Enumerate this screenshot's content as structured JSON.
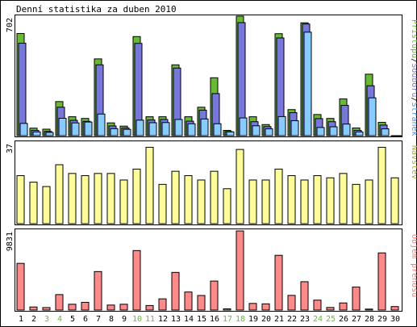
{
  "title": "Denní statistika za duben 2010",
  "colors": {
    "hits": "#66bb33",
    "files": "#7777dd",
    "pages": "#88ccff",
    "visits": "#ffff99",
    "traffic": "#ff8888",
    "weekend": "#66bb33",
    "text": "#000000"
  },
  "chart_data": [
    {
      "type": "bar",
      "panel": "hits",
      "ymax_label": "702",
      "legend": {
        "hits": "Přístupů",
        "sep1": "/",
        "files": "Souborů",
        "sep2": "/",
        "pages": "Stránek"
      },
      "ylim": [
        0,
        702
      ],
      "series": [
        {
          "name": "Přístupů",
          "key": "hits",
          "values": [
            600,
            44,
            38,
            200,
            111,
            101,
            451,
            75,
            56,
            582,
            111,
            111,
            416,
            111,
            167,
            340,
            31,
            702,
            111,
            65,
            599,
            153,
            663,
            124,
            101,
            216,
            45,
            361,
            78,
            0
          ]
        },
        {
          "name": "Souborů",
          "key": "files",
          "values": [
            543,
            31,
            25,
            167,
            90,
            84,
            416,
            57,
            45,
            542,
            92,
            95,
            397,
            85,
            150,
            247,
            24,
            664,
            82,
            53,
            574,
            135,
            656,
            100,
            82,
            178,
            31,
            293,
            62,
            0
          ]
        },
        {
          "name": "Stránek",
          "key": "pages",
          "values": [
            72,
            22,
            19,
            102,
            75,
            80,
            127,
            41,
            37,
            91,
            76,
            77,
            95,
            70,
            98,
            70,
            22,
            104,
            58,
            40,
            112,
            88,
            608,
            48,
            52,
            68,
            22,
            222,
            40,
            0
          ]
        }
      ]
    },
    {
      "type": "bar",
      "panel": "visits",
      "ymax_label": "37",
      "legend_label": "Návštěv",
      "ylim": [
        0,
        37
      ],
      "series": [
        {
          "name": "Návštěv",
          "key": "visits",
          "values": [
            22,
            19,
            17,
            27,
            23,
            22,
            23,
            23,
            20,
            25,
            35,
            18,
            24,
            22,
            20,
            24,
            16,
            34,
            20,
            20,
            25,
            22,
            20,
            22,
            21,
            23,
            18,
            20,
            35,
            21
          ]
        }
      ]
    },
    {
      "type": "bar",
      "panel": "traffic",
      "ymax_label": "9831",
      "legend_label": "Objem přenosu",
      "ylim": [
        0,
        9831
      ],
      "series": [
        {
          "name": "Objem přenosu",
          "key": "traffic",
          "values": [
            5800,
            380,
            310,
            1920,
            720,
            960,
            4780,
            620,
            720,
            7390,
            560,
            1390,
            4680,
            2240,
            1810,
            3600,
            150,
            9831,
            820,
            770,
            6800,
            1820,
            3520,
            1230,
            320,
            880,
            2860,
            120,
            7100,
            430
          ]
        }
      ]
    }
  ],
  "days": [
    "1",
    "2",
    "3",
    "4",
    "5",
    "6",
    "7",
    "8",
    "9",
    "10",
    "11",
    "12",
    "13",
    "14",
    "15",
    "16",
    "17",
    "18",
    "19",
    "20",
    "21",
    "22",
    "23",
    "24",
    "25",
    "26",
    "27",
    "28",
    "29",
    "30"
  ],
  "weekend_days": [
    3,
    4,
    10,
    11,
    17,
    18,
    24,
    25
  ]
}
